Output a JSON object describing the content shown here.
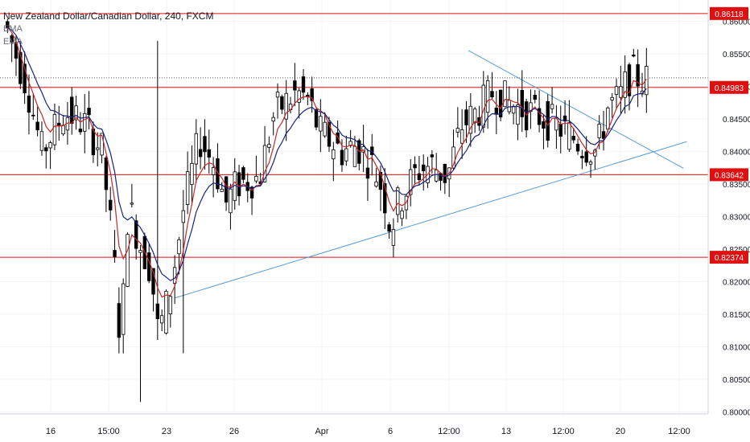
{
  "header": {
    "symbol_title": "New Zealand Dollar/Canadian Dollar, 240, FXCM"
  },
  "indicators": [
    {
      "label": "EMA",
      "color": "#c62828"
    },
    {
      "label": "EMA",
      "color": "#1a237e"
    }
  ],
  "colors": {
    "bull": "#ffffff",
    "bear": "#000000",
    "wick": "#000000",
    "level": "#e01010",
    "trendline": "#5a9bd4",
    "grid": "#f0f3fa",
    "axis_text": "#131722",
    "current_price_line": "#555555"
  },
  "chart_data": {
    "type": "candlestick",
    "y_axis": {
      "min": 0.8,
      "max": 0.861,
      "ticks": [
        "0.80000",
        "0.80500",
        "0.81000",
        "0.81500",
        "0.82000",
        "0.82500",
        "0.83000",
        "0.83500",
        "0.84000",
        "0.84500",
        "0.85000",
        "0.85500",
        "0.86000"
      ],
      "side": "right"
    },
    "x_axis": {
      "ticks": [
        "16",
        "15:00",
        "23",
        "26",
        "Apr",
        "6",
        "12:00",
        "13",
        "12:00",
        "20",
        "12:00"
      ]
    },
    "horizontal_levels": [
      {
        "label": "0.86118",
        "value": 0.86118
      },
      {
        "label": "0.84983",
        "value": 0.84983
      },
      {
        "label": "0.83642",
        "value": 0.83642
      },
      {
        "label": "0.82374",
        "value": 0.82374
      }
    ],
    "current_price": 0.8513,
    "trendlines": [
      {
        "name": "support",
        "from": [
          0.2336,
          0.8175
        ],
        "to": [
          0.9157,
          0.8415
        ]
      },
      {
        "name": "resistance",
        "from": [
          0.6245,
          0.8555
        ],
        "to": [
          0.9114,
          0.8374
        ]
      }
    ],
    "grid": true,
    "candles": []
  }
}
